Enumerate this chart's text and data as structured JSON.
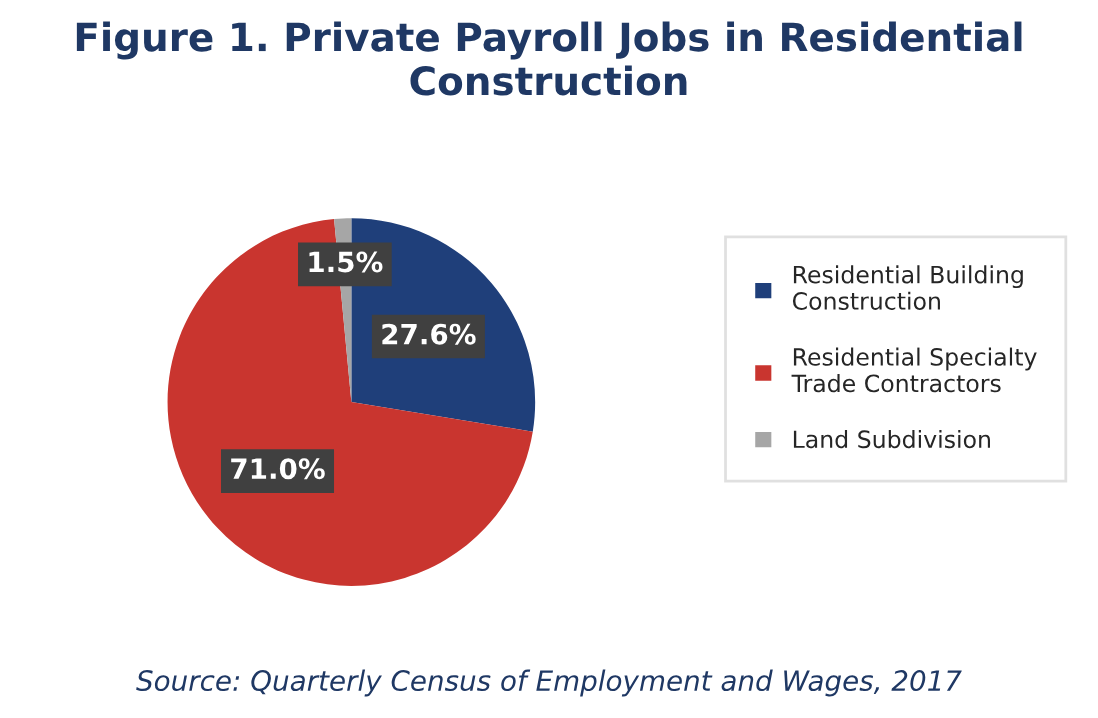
{
  "chart_data": {
    "type": "pie",
    "title": "Figure 1. Private Payroll Jobs in Residential Construction",
    "categories": [
      "Residential Building Construction",
      "Residential Specialty Trade Contractors",
      "Land Subdivision"
    ],
    "values": [
      27.6,
      71.0,
      1.5
    ],
    "value_labels": [
      "27.6%",
      "71.0%",
      "1.5%"
    ],
    "colors": [
      "#1f3f7a",
      "#c9352f",
      "#a6a6a6"
    ],
    "legend": "right",
    "annotations": [
      "Source: Quarterly Census of Employment and Wages, 2017"
    ]
  }
}
